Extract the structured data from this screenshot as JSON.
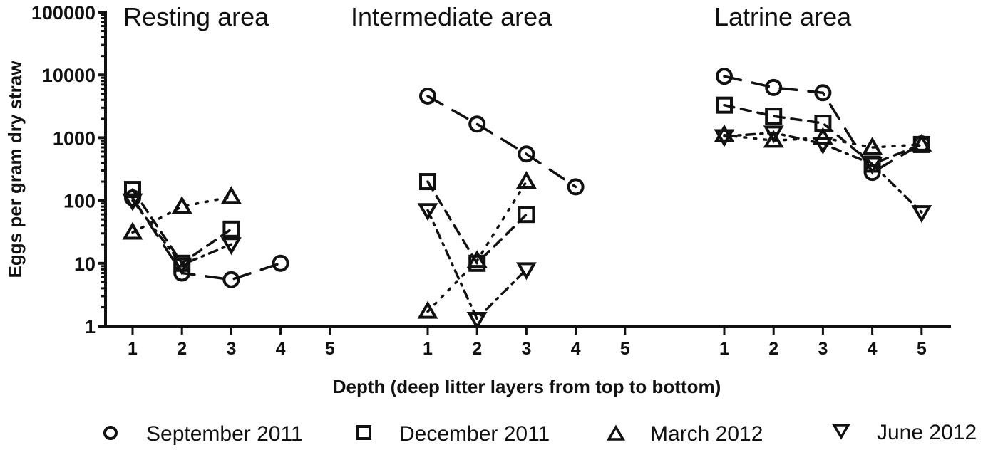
{
  "chart_data": {
    "type": "scatter",
    "title": "",
    "xlabel": "Depth (deep litter layers from top to bottom)",
    "ylabel": "Eggs per gram dry straw",
    "yscale": "log",
    "ylim": [
      1,
      100000
    ],
    "yticks": [
      "1",
      "10",
      "100",
      "1000",
      "10000",
      "100000"
    ],
    "xticks": [
      "1",
      "2",
      "3",
      "4",
      "5"
    ],
    "grid": false,
    "legend_position": "bottom",
    "panels": [
      {
        "title": "Resting area",
        "series": [
          {
            "name": "September 2011",
            "marker": "circle",
            "line": "long-dash",
            "x": [
              1,
              2,
              3,
              4
            ],
            "values": [
              110,
              7,
              5.5,
              10
            ]
          },
          {
            "name": "December 2011",
            "marker": "square",
            "line": "dash",
            "x": [
              1,
              2,
              3
            ],
            "values": [
              150,
              10,
              35
            ]
          },
          {
            "name": "March 2012",
            "marker": "triangle-up",
            "line": "dot",
            "x": [
              1,
              2,
              3
            ],
            "values": [
              31,
              80,
              115
            ]
          },
          {
            "name": "June 2012",
            "marker": "triangle-down",
            "line": "dash-dot",
            "x": [
              1,
              2,
              3
            ],
            "values": [
              100,
              9.5,
              20
            ]
          }
        ]
      },
      {
        "title": "Intermediate area",
        "series": [
          {
            "name": "September 2011",
            "marker": "circle",
            "line": "long-dash",
            "x": [
              1,
              2,
              3,
              4
            ],
            "values": [
              4600,
              1650,
              550,
              165
            ]
          },
          {
            "name": "December 2011",
            "marker": "square",
            "line": "dash",
            "x": [
              1,
              2,
              3
            ],
            "values": [
              200,
              10,
              60
            ]
          },
          {
            "name": "March 2012",
            "marker": "triangle-up",
            "line": "dot",
            "x": [
              1,
              2,
              3
            ],
            "values": [
              1.7,
              11,
              200
            ]
          },
          {
            "name": "June 2012",
            "marker": "triangle-down",
            "line": "dash-dot",
            "x": [
              1,
              2,
              3
            ],
            "values": [
              70,
              1.3,
              8
            ]
          }
        ]
      },
      {
        "title": "Latrine area",
        "series": [
          {
            "name": "September 2011",
            "marker": "circle",
            "line": "long-dash",
            "x": [
              1,
              2,
              3,
              4,
              5
            ],
            "values": [
              9500,
              6300,
              5200,
              280,
              800
            ]
          },
          {
            "name": "December 2011",
            "marker": "square",
            "line": "dash",
            "x": [
              1,
              2,
              3,
              4,
              5
            ],
            "values": [
              3300,
              2200,
              1700,
              380,
              780
            ]
          },
          {
            "name": "March 2012",
            "marker": "triangle-up",
            "line": "dot",
            "x": [
              1,
              2,
              3,
              4,
              5
            ],
            "values": [
              1100,
              900,
              1000,
              700,
              780
            ]
          },
          {
            "name": "June 2012",
            "marker": "triangle-down",
            "line": "dash-dot",
            "x": [
              1,
              2,
              3,
              4,
              5
            ],
            "values": [
              1050,
              1200,
              800,
              380,
              65
            ]
          }
        ]
      }
    ],
    "legend": [
      {
        "label": "September 2011",
        "marker": "circle"
      },
      {
        "label": "December 2011",
        "marker": "square"
      },
      {
        "label": "March 2012",
        "marker": "triangle-up"
      },
      {
        "label": "June 2012",
        "marker": "triangle-down"
      }
    ]
  },
  "colors": {
    "ink": "#111111",
    "background": "#ffffff"
  }
}
